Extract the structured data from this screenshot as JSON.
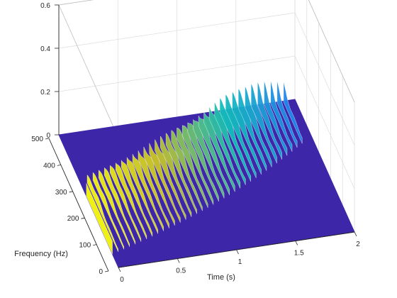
{
  "chart_data": {
    "type": "surface",
    "view": "3d-waterfall",
    "title": "",
    "xlabel": "Time (s)",
    "ylabel": "Frequency (Hz)",
    "zlabel": "",
    "xlim": [
      0,
      2
    ],
    "ylim": [
      0,
      500
    ],
    "zlim": [
      0,
      0.6
    ],
    "x_ticks": [
      {
        "value": 0,
        "label": "0"
      },
      {
        "value": 0.5,
        "label": "0.5"
      },
      {
        "value": 1,
        "label": "1"
      },
      {
        "value": 1.5,
        "label": "1.5"
      },
      {
        "value": 2,
        "label": "2"
      }
    ],
    "y_ticks": [
      {
        "value": 0,
        "label": "0"
      },
      {
        "value": 100,
        "label": "100"
      },
      {
        "value": 200,
        "label": "200"
      },
      {
        "value": 300,
        "label": "300"
      },
      {
        "value": 400,
        "label": "400"
      },
      {
        "value": 500,
        "label": "500"
      }
    ],
    "z_ticks": [
      {
        "value": 0,
        "label": "0"
      },
      {
        "value": 0.2,
        "label": "0.2"
      },
      {
        "value": 0.4,
        "label": "0.4"
      },
      {
        "value": 0.6,
        "label": "0.6"
      }
    ],
    "grid": true,
    "colormap": "parula",
    "colors": {
      "low": "#3e26a8",
      "mid": "#12beb9",
      "high": "#f9fb0e",
      "gridline": "#dcdcdc",
      "axis": "#262626"
    },
    "ridges": {
      "x_start": 0,
      "x_end": 1.9,
      "count": 36,
      "start_freq": 250,
      "freq_growth_per_s": 1.5,
      "peak_amplitude": 0.1,
      "onset_amplitude": 0.06
    }
  }
}
